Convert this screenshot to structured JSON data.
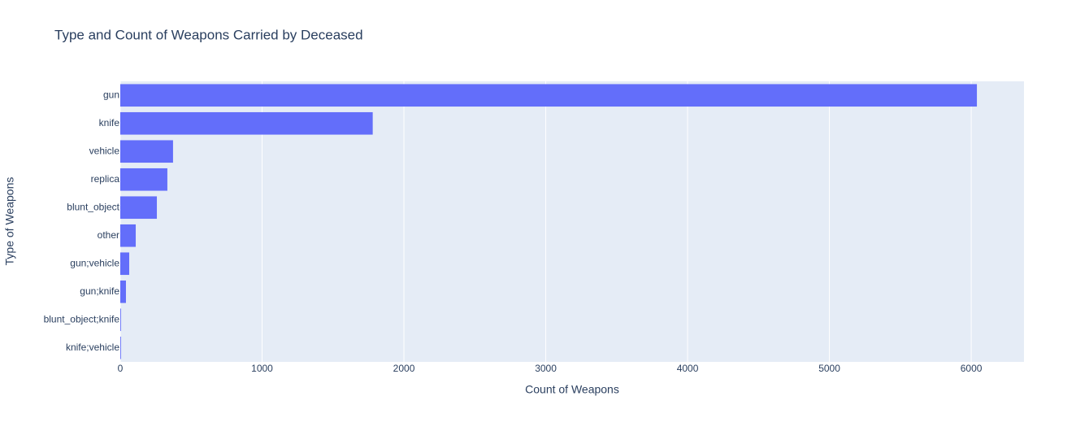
{
  "chart_data": {
    "type": "bar",
    "orientation": "horizontal",
    "title": "Type and Count of Weapons Carried by Deceased",
    "x_label": "Count of Weapons",
    "y_label": "Type of Weapons",
    "categories": [
      "gun",
      "knife",
      "vehicle",
      "replica",
      "blunt_object",
      "other",
      "gun;vehicle",
      "gun;knife",
      "blunt_object;knife",
      "knife;vehicle"
    ],
    "values": [
      6040,
      1780,
      372,
      332,
      258,
      109,
      63,
      40,
      5,
      5
    ],
    "color": "#636efa",
    "xlim": [
      0,
      6372
    ],
    "xticks": [
      0,
      1000,
      2000,
      3000,
      4000,
      5000,
      6000
    ],
    "grid": true
  }
}
